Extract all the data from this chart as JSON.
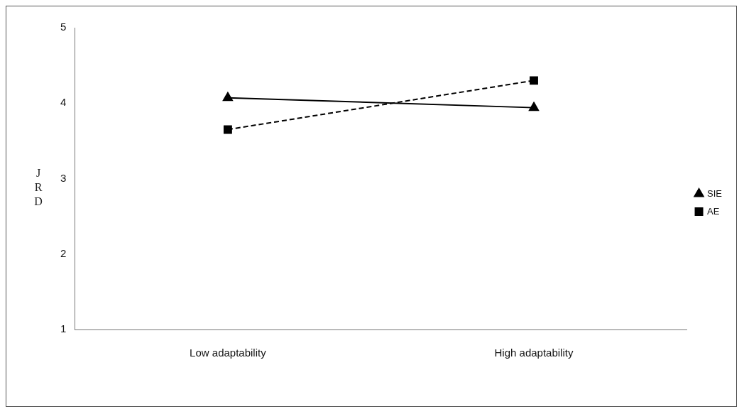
{
  "chart_data": {
    "type": "line",
    "ylabel": "JRD",
    "categories": [
      "Low adaptability",
      "High adaptability"
    ],
    "series": [
      {
        "name": "SIE",
        "color": "#000000",
        "values": [
          4.07,
          3.94
        ],
        "marker": "triangle",
        "line_style": "solid"
      },
      {
        "name": "AE",
        "color": "#000000",
        "values": [
          3.65,
          4.3
        ],
        "marker": "square",
        "line_style": "dashed"
      }
    ],
    "ylim": [
      1,
      5
    ],
    "yticks": [
      1,
      2,
      3,
      4,
      5
    ],
    "grid": false,
    "legend": "right"
  }
}
